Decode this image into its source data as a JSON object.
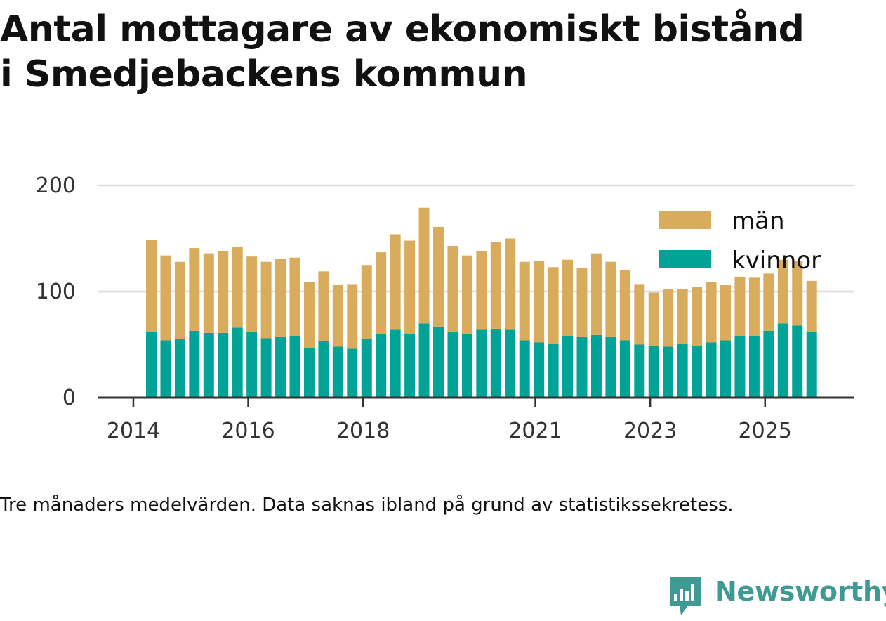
{
  "title_line1": "Antal mottagare av ekonomiskt bistånd",
  "title_line2": "i Smedjebackens kommun",
  "note": "Tre månaders medelvärden. Data saknas ibland på grund av statistikssekretess.",
  "logo_text": "Newsworthy",
  "colors": {
    "man": "#d9ab5c",
    "kvinnor": "#00a396",
    "logo": "#3f9a94"
  },
  "chart_data": {
    "type": "bar",
    "stacked": true,
    "title": "Antal mottagare av ekonomiskt bistånd i Smedjebackens kommun",
    "xlabel": "",
    "ylabel": "",
    "ylim": [
      0,
      200
    ],
    "yticks": [
      0,
      100,
      200
    ],
    "grid": true,
    "legend_position": "top-right",
    "xtick_labels": [
      "2014",
      "2016",
      "2018",
      "2021",
      "2023",
      "2025"
    ],
    "xtick_bar_index": [
      -1,
      7,
      15,
      27,
      35,
      43
    ],
    "series": [
      {
        "name": "kvinnor",
        "color": "#00a396",
        "values": [
          62,
          54,
          55,
          63,
          61,
          61,
          66,
          62,
          56,
          57,
          58,
          47,
          53,
          48,
          46,
          55,
          60,
          64,
          60,
          70,
          67,
          62,
          60,
          64,
          65,
          64,
          54,
          52,
          51,
          58,
          57,
          59,
          57,
          54,
          50,
          49,
          48,
          51,
          49,
          52,
          54,
          58,
          58,
          63,
          70,
          68,
          62
        ]
      },
      {
        "name": "män",
        "color": "#d9ab5c",
        "values": [
          87,
          80,
          73,
          78,
          75,
          77,
          76,
          71,
          72,
          74,
          74,
          62,
          66,
          58,
          61,
          70,
          77,
          90,
          88,
          109,
          94,
          81,
          74,
          74,
          82,
          86,
          74,
          77,
          72,
          72,
          65,
          77,
          71,
          66,
          57,
          50,
          54,
          51,
          55,
          57,
          52,
          56,
          55,
          54,
          60,
          61,
          48
        ]
      }
    ]
  }
}
